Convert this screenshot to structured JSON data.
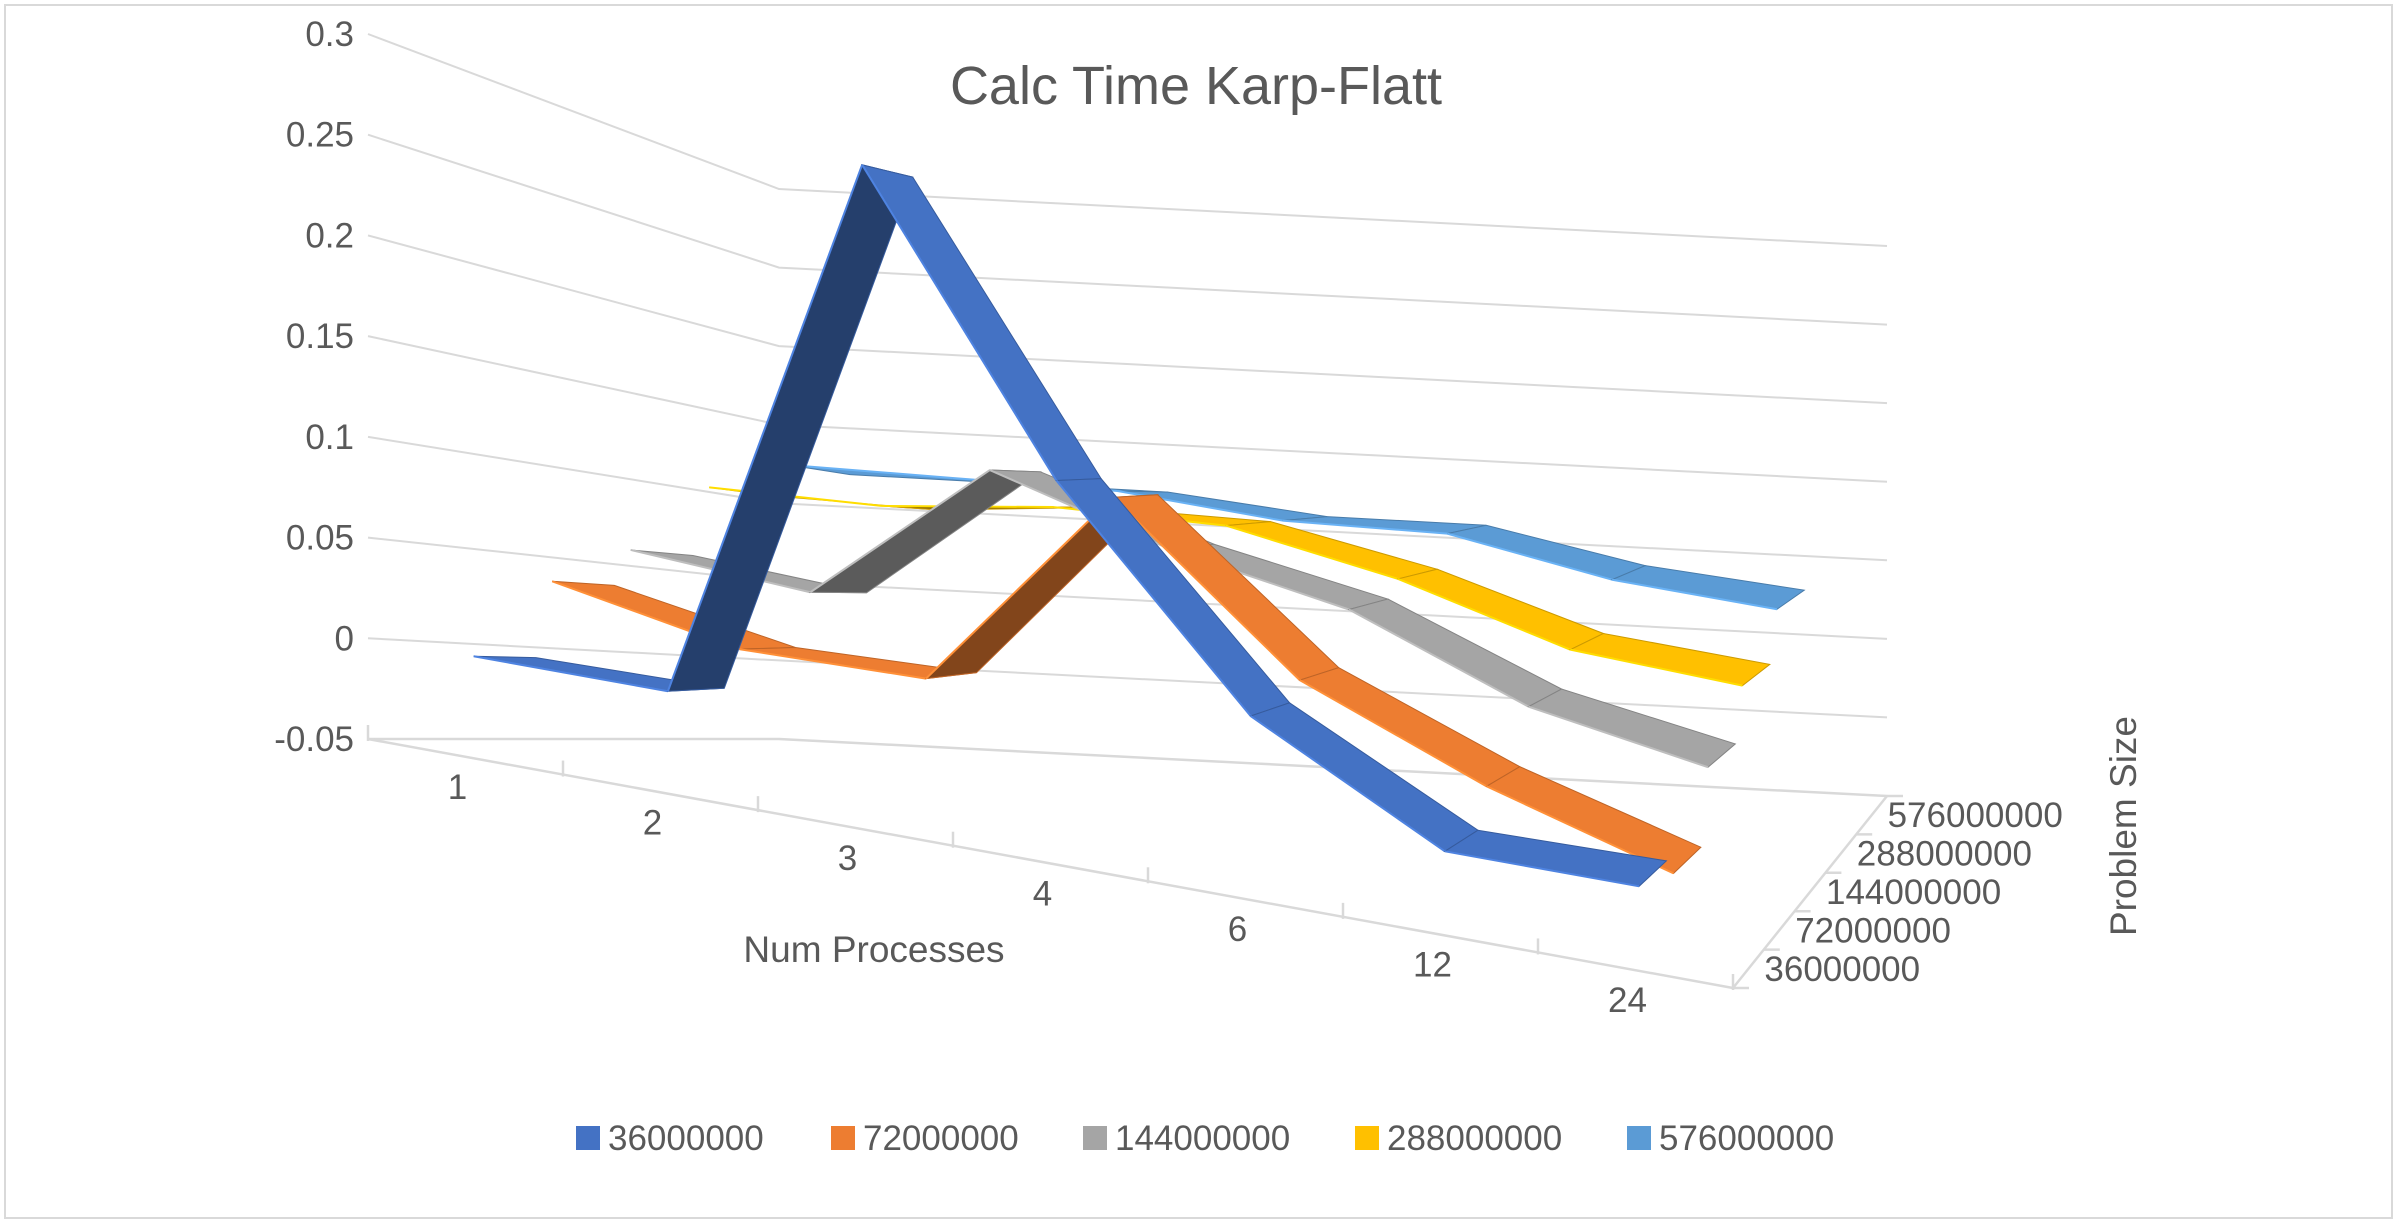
{
  "chart_data": {
    "type": "line",
    "variant": "3d-line",
    "title": "Calc Time Karp-Flatt",
    "xlabel": "Num Processes",
    "zlabel": "Problem Size",
    "ylabel": "",
    "categories": [
      "1",
      "2",
      "3",
      "4",
      "6",
      "12",
      "24"
    ],
    "y_ticks": [
      "-0.05",
      "0",
      "0.05",
      "0.1",
      "0.15",
      "0.2",
      "0.25",
      "0.3"
    ],
    "ylim": [
      -0.05,
      0.3
    ],
    "grid": true,
    "legend_position": "bottom",
    "series": [
      {
        "name": "36000000",
        "color": "#4472C4",
        "values": [
          0,
          0,
          0.28,
          0.14,
          0.04,
          -0.01,
          -0.01
        ]
      },
      {
        "name": "72000000",
        "color": "#ED7D31",
        "values": [
          0.04,
          0.02,
          0.02,
          0.13,
          0.05,
          0.01,
          -0.02
        ]
      },
      {
        "name": "144000000",
        "color": "#A5A5A5",
        "values": [
          0.06,
          0.05,
          0.13,
          0.1,
          0.08,
          0.04,
          0.02
        ]
      },
      {
        "name": "288000000",
        "color": "#FFC000",
        "values": [
          0.1,
          0.1,
          0.11,
          0.11,
          0.09,
          0.06,
          0.05
        ]
      },
      {
        "name": "576000000",
        "color": "#5B9BD5",
        "values": [
          0.12,
          0.12,
          0.12,
          0.11,
          0.11,
          0.09,
          0.08
        ]
      }
    ]
  }
}
